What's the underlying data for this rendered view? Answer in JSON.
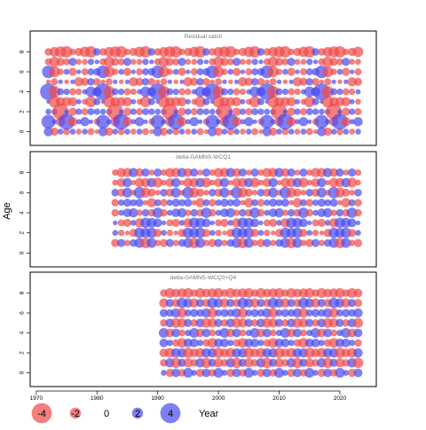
{
  "chart_data": {
    "type": "scatter",
    "ylabel": "Age",
    "xlabel": "Year",
    "xlim": [
      1969,
      2026
    ],
    "ylim": [
      -1.2,
      9.2
    ],
    "x_ticks": [
      1970,
      1980,
      1990,
      2000,
      2010,
      2020
    ],
    "y_ticks": [
      0,
      2,
      4,
      6,
      8
    ],
    "ages": [
      0,
      1,
      2,
      3,
      4,
      5,
      6,
      7,
      8
    ],
    "colors": {
      "positive": "#4848f0",
      "negative": "#f04848"
    },
    "legend": {
      "placement": "bottom-left",
      "values": [
        -4,
        -2,
        0,
        2,
        4
      ],
      "labels": [
        "-4",
        "-2",
        "0",
        "2",
        "4"
      ],
      "title": "Year"
    },
    "panels": [
      {
        "title": "Residual catch",
        "years": [
          1972,
          2023
        ],
        "ages": [
          0,
          8
        ],
        "residuals": [
          [
            1.2,
            2.0,
            0.6,
            0.3,
            2.5,
            -0.4,
            1.8,
            -0.8,
            -0.9
          ],
          [
            -1.0,
            0.5,
            0.6,
            -1.6,
            -1.6,
            -0.8,
            -1.5,
            -1.4,
            -1.3
          ],
          [
            0.6,
            -1.2,
            -2.4,
            -1.2,
            0.8,
            0.4,
            -0.7,
            -1.0,
            -1.5
          ],
          [
            -0.8,
            2.4,
            0.4,
            -1.2,
            0.7,
            -0.4,
            0.6,
            -0.8,
            -1.6
          ],
          [
            0.6,
            -1.2,
            -1.0,
            -1.2,
            -0.8,
            0.4,
            -1.0,
            1.0,
            -0.7
          ],
          [
            -0.6,
            0.5,
            0.7,
            0.5,
            -0.7,
            -1.2,
            0.4,
            -0.6,
            -1.0
          ],
          [
            0.6,
            1.2,
            -0.8,
            -0.6,
            0.5,
            -1.0,
            -0.8,
            -0.6,
            -1.4
          ],
          [
            -0.8,
            0.4,
            0.8,
            -1.5,
            1.4,
            0.9,
            0.8,
            0.7,
            -1.6
          ],
          [
            -0.4,
            -0.7,
            0.7,
            0.8,
            1.2,
            -0.9,
            0.9,
            0.4,
            0.9
          ]
        ]
      },
      {
        "title": "delta-GAMNS-WCQ1",
        "years": [
          1983,
          2023
        ],
        "ages": [
          1,
          8
        ],
        "residuals": [
          [
            -1.0,
            0.6,
            0.4,
            -0.9,
            -0.9,
            0.9,
            -0.6,
            -0.7
          ],
          [
            1.0,
            -0.7,
            -0.8,
            0.6,
            0.7,
            -1.0,
            -1.1,
            -1.2
          ],
          [
            -0.7,
            -0.4,
            -1.0,
            1.1,
            1.0,
            1.3,
            1.2,
            -1.2
          ],
          [
            0.9,
            -1.0,
            0.6,
            1.2,
            0.8,
            -0.6,
            -0.5,
            1.2
          ],
          [
            1.3,
            1.4,
            -1.2,
            -0.7,
            1.0,
            1.6,
            -1.2,
            -1.1
          ],
          [
            -1.4,
            1.3,
            1.4,
            0.9,
            -0.5,
            -1.3,
            -1.2,
            1.0
          ],
          [
            1.3,
            1.4,
            1.3,
            -0.9,
            -1.2,
            -1.0,
            1.2,
            -0.6
          ],
          [
            -0.7,
            -1.0,
            1.1,
            1.4,
            0.8,
            -0.6,
            -1.3,
            1.0
          ]
        ]
      },
      {
        "title": "delta-GAMNS-WCQ3+Q4",
        "years": [
          1991,
          2023
        ],
        "ages": [
          0,
          8
        ],
        "residuals": [
          [
            0.6,
            -0.9,
            -1.1,
            1.1,
            1.3,
            -0.9,
            1.0,
            -1.2,
            -0.9
          ],
          [
            -1.0,
            1.2,
            -1.3,
            0.7,
            -1.1,
            1.1,
            0.9,
            1.0,
            -1.3
          ],
          [
            1.1,
            -1.4,
            1.2,
            -0.9,
            1.1,
            -1.3,
            1.2,
            -1.0,
            -1.1
          ],
          [
            -0.9,
            1.0,
            1.2,
            -1.3,
            -0.8,
            -1.2,
            -1.3,
            1.4,
            -1.2
          ],
          [
            1.3,
            -1.2,
            -1.4,
            1.1,
            0.7,
            1.0,
            0.8,
            1.2,
            -1.3
          ]
        ]
      }
    ]
  }
}
